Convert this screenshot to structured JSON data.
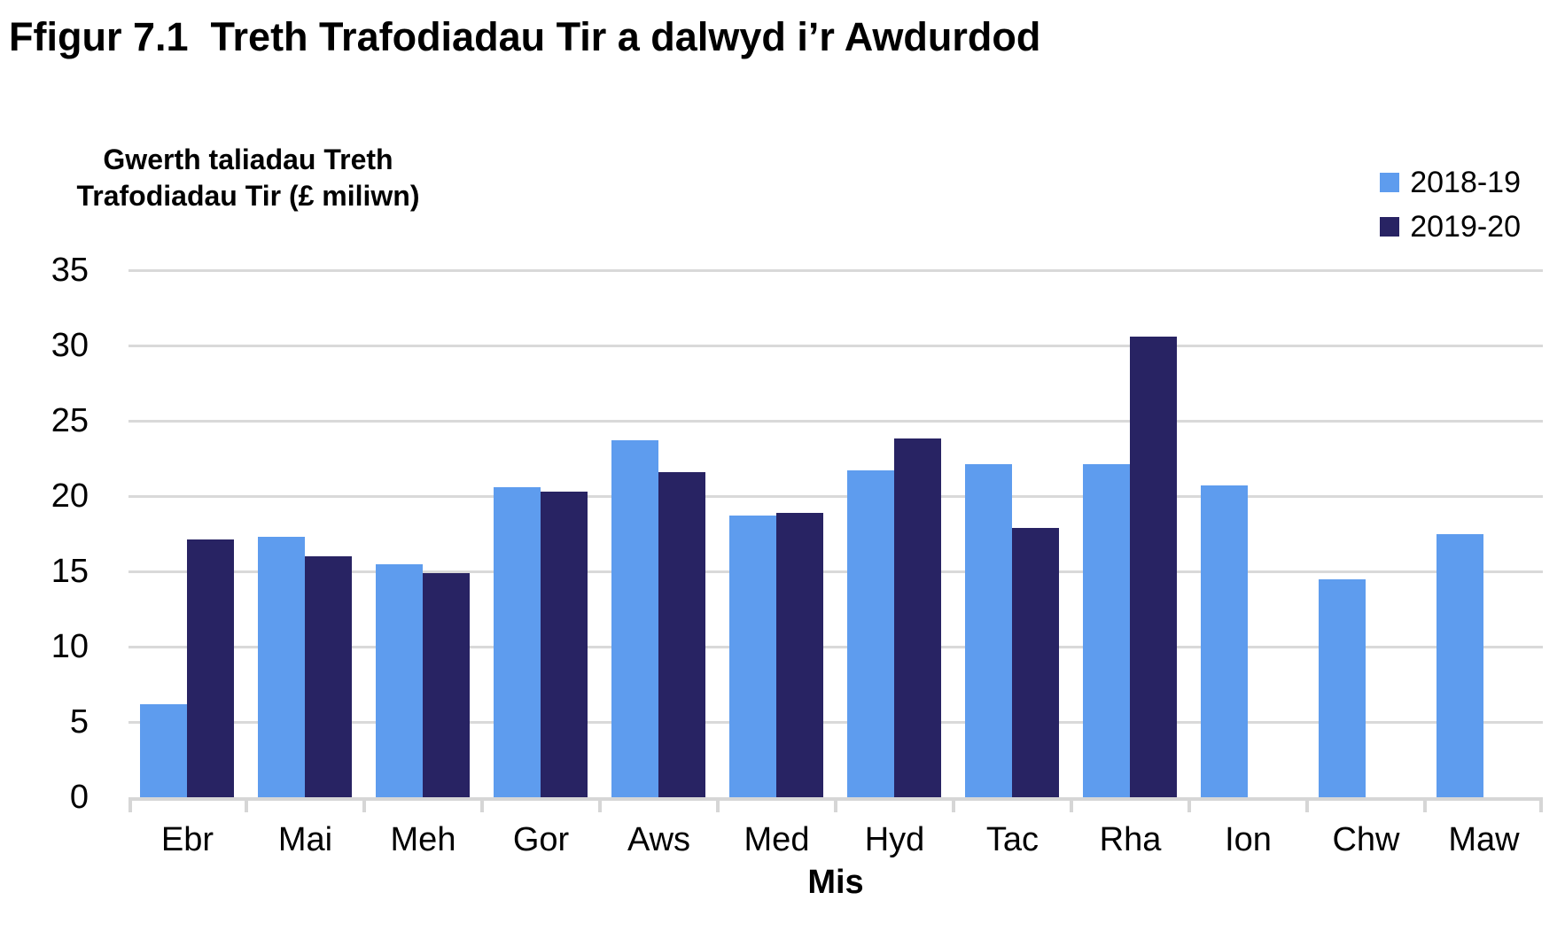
{
  "title": "Ffigur 7.1  Treth Trafodiadau Tir a dalwyd i’r Awdurdod",
  "chart_data": {
    "type": "bar",
    "title": "Ffigur 7.1  Treth Trafodiadau Tir a dalwyd i’r Awdurdod",
    "y_axis_title_line1": "Gwerth taliadau  Treth",
    "y_axis_title_line2": "Trafodiadau Tir (£ miliwn)",
    "x_axis_title": "Mis",
    "categories": [
      "Ebr",
      "Mai",
      "Meh",
      "Gor",
      "Aws",
      "Med",
      "Hyd",
      "Tac",
      "Rha",
      "Ion",
      "Chw",
      "Maw"
    ],
    "series": [
      {
        "name": "2018-19",
        "color": "#5e9cee",
        "values": [
          6.2,
          17.3,
          15.5,
          20.6,
          23.7,
          18.7,
          21.7,
          22.1,
          22.1,
          20.7,
          14.5,
          17.5
        ]
      },
      {
        "name": "2019-20",
        "color": "#282363",
        "values": [
          17.1,
          16.0,
          14.9,
          20.3,
          21.6,
          18.9,
          23.8,
          17.9,
          30.6,
          null,
          null,
          null
        ]
      }
    ],
    "ylim": [
      0,
      35
    ],
    "yticks": [
      0,
      5,
      10,
      15,
      20,
      25,
      30,
      35
    ],
    "grid": "horizontal",
    "legend_position": "top-right",
    "gridline_color": "#d9d9d9",
    "axis_color": "#d6d6d6"
  }
}
